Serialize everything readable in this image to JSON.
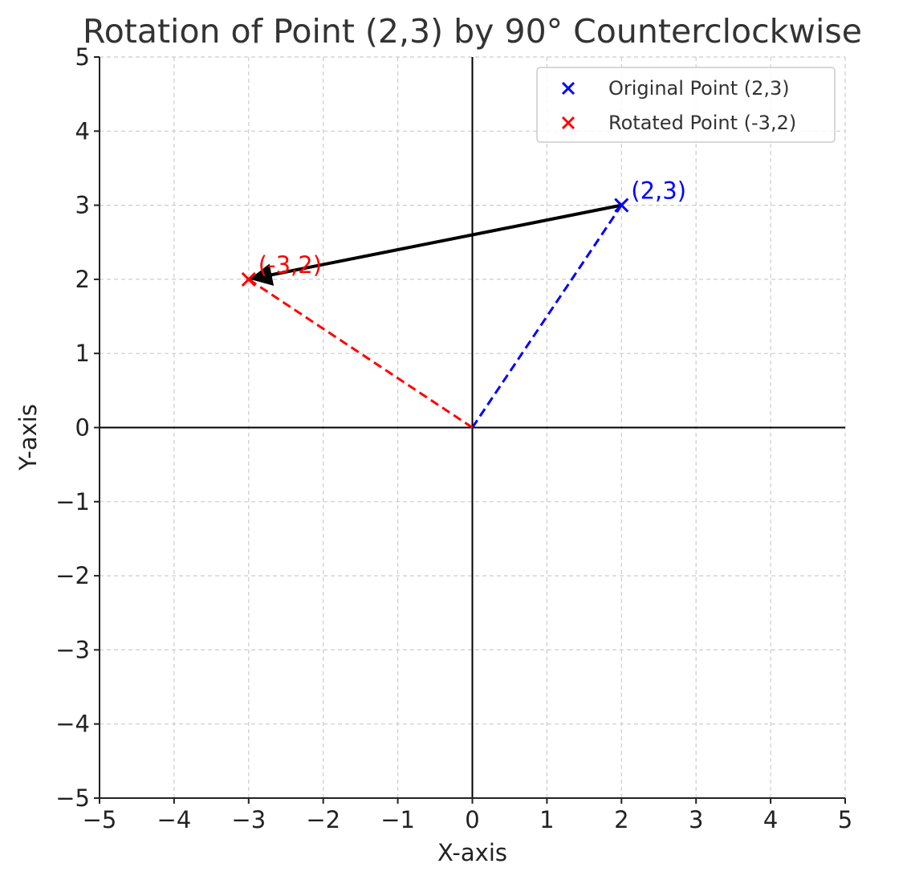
{
  "chart_data": {
    "type": "scatter",
    "title": "Rotation of Point (2,3) by 90° Counterclockwise",
    "xlabel": "X-axis",
    "ylabel": "Y-axis",
    "xlim": [
      -5,
      5
    ],
    "ylim": [
      -5,
      5
    ],
    "x_ticks": [
      -5,
      -4,
      -3,
      -2,
      -1,
      0,
      1,
      2,
      3,
      4,
      5
    ],
    "y_ticks": [
      -5,
      -4,
      -3,
      -2,
      -1,
      0,
      1,
      2,
      3,
      4,
      5
    ],
    "x_tick_labels": [
      "−5",
      "−4",
      "−3",
      "−2",
      "−1",
      "0",
      "1",
      "2",
      "3",
      "4",
      "5"
    ],
    "y_tick_labels": [
      "−5",
      "−4",
      "−3",
      "−2",
      "−1",
      "0",
      "1",
      "2",
      "3",
      "4",
      "5"
    ],
    "grid": true,
    "legend_position": "top-right",
    "series": [
      {
        "name": "Original Point (2,3)",
        "x": [
          2
        ],
        "y": [
          3
        ],
        "color": "#0000ff",
        "marker": "x",
        "label": "(2,3)"
      },
      {
        "name": "Rotated Point (-3,2)",
        "x": [
          -3
        ],
        "y": [
          2
        ],
        "color": "#ff0000",
        "marker": "x",
        "label": "(-3,2)"
      }
    ],
    "lines": [
      {
        "from": [
          0,
          0
        ],
        "to": [
          2,
          3
        ],
        "style": "dashed",
        "color": "#0000ff"
      },
      {
        "from": [
          0,
          0
        ],
        "to": [
          -3,
          2
        ],
        "style": "dashed",
        "color": "#ff0000"
      }
    ],
    "arrow": {
      "from": [
        2,
        3
      ],
      "to": [
        -3,
        2
      ],
      "color": "#000000"
    },
    "origin_axes": true
  }
}
